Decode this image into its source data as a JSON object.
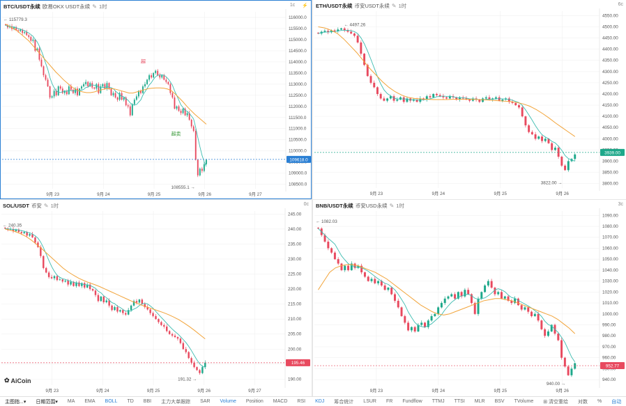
{
  "colors": {
    "up": "#1ea88a",
    "down": "#e84a5f",
    "ma_fast": "#3cbcb0",
    "ma_slow": "#f2a43a",
    "grid": "#f0f0f0",
    "accent": "#2a7fd4"
  },
  "panels": [
    {
      "id": "btc",
      "symbol": "BTC/USDT永续",
      "exchange": "欧易OKX USDT永续",
      "timeframe": "1时",
      "top_right": [
        "1c",
        "⚡"
      ],
      "yticks": [
        "116000.0",
        "115500.0",
        "115000.0",
        "114500.0",
        "114000.0",
        "113500.0",
        "113000.0",
        "112500.0",
        "112000.0",
        "111500.0",
        "111000.0",
        "110500.0",
        "110000.0",
        "109500.0",
        "109000.0",
        "108500.0"
      ],
      "xticks": [
        "9月 23",
        "9月 24",
        "9月 25",
        "9月 26",
        "9月 27"
      ],
      "price_tag": "109618.0",
      "high_label": "115779.3",
      "low_label": "108555.1",
      "annotation_1": "超",
      "annotation_2": "超卖",
      "ymin": 108300,
      "ymax": 116250,
      "closes": [
        115650,
        115550,
        115600,
        115480,
        115560,
        115420,
        115380,
        115450,
        115300,
        115340,
        115200,
        115120,
        114950,
        115000,
        114500,
        114600,
        114100,
        113800,
        113400,
        113200,
        112900,
        112400,
        112450,
        112700,
        112500,
        112900,
        112800,
        112600,
        112700,
        112550,
        112900,
        112750,
        112600,
        112800,
        112500,
        112800,
        112900,
        113000,
        113100,
        112900,
        113050,
        112850,
        112800,
        113000,
        112600,
        112900,
        113000,
        112800,
        113050,
        112800,
        112500,
        112600,
        112400,
        112300,
        112600,
        112300,
        112400,
        112050,
        112000,
        111600,
        112100,
        112300,
        112450,
        112700,
        112600,
        112900,
        113000,
        113200,
        113400,
        113300,
        113500,
        113600,
        113400,
        113300,
        113400,
        113200,
        113100,
        113000,
        112600,
        112400,
        111900,
        112000,
        111800,
        111700,
        111900,
        111600,
        111700,
        111400,
        111100,
        110900,
        109600,
        108900,
        109200,
        109100,
        109400,
        109600
      ],
      "ma_slow": [
        115700,
        115600,
        115500,
        115400,
        115250,
        115100,
        114950,
        114750,
        114550,
        114350,
        114150,
        113950,
        113750,
        113550,
        113380,
        113200,
        113050,
        112900,
        112780,
        112700,
        112650,
        112620,
        112620,
        112650,
        112700,
        112750,
        112800,
        112800,
        112790,
        112750,
        112700,
        112650,
        112600,
        112600,
        112650,
        112700,
        112750,
        112800,
        112820,
        112830,
        112830,
        112820,
        112780,
        112700,
        112550,
        112380,
        112200,
        112000,
        111820,
        111650,
        111500,
        111350,
        111200
      ]
    },
    {
      "id": "eth",
      "symbol": "ETH/USDT永续",
      "exchange": "币安USDT永续",
      "timeframe": "1时",
      "top_right": [
        "6c"
      ],
      "yticks": [
        "4550.00",
        "4500.00",
        "4450.00",
        "4400.00",
        "4350.00",
        "4300.00",
        "4250.00",
        "4200.00",
        "4150.00",
        "4100.00",
        "4050.00",
        "4000.00",
        "3950.00",
        "3900.00",
        "3850.00",
        "3800.00"
      ],
      "xticks": [
        "9月 23",
        "9月 24",
        "9月 25",
        "9月 26"
      ],
      "price_tag": "3939.00",
      "high_label": "4497.26",
      "low_label": "3822.00",
      "ymin": 3780,
      "ymax": 4570,
      "closes": [
        4470,
        4478,
        4482,
        4476,
        4484,
        4480,
        4488,
        4493,
        4485,
        4478,
        4470,
        4460,
        4430,
        4380,
        4330,
        4280,
        4250,
        4230,
        4200,
        4180,
        4170,
        4180,
        4190,
        4170,
        4175,
        4185,
        4165,
        4180,
        4170,
        4175,
        4165,
        4180,
        4175,
        4190,
        4185,
        4200,
        4195,
        4190,
        4185,
        4180,
        4190,
        4185,
        4175,
        4185,
        4180,
        4175,
        4170,
        4180,
        4175,
        4165,
        4180,
        4185,
        4175,
        4180,
        4185,
        4170,
        4175,
        4180,
        4165,
        4160,
        4150,
        4140,
        4100,
        4060,
        4030,
        4020,
        4000,
        4010,
        3990,
        4000,
        3980,
        3950,
        3960,
        3920,
        3880,
        3860,
        3900,
        3910,
        3930
      ],
      "ma_slow": [
        4500,
        4495,
        4485,
        4470,
        4445,
        4415,
        4385,
        4350,
        4315,
        4285,
        4255,
        4230,
        4210,
        4195,
        4185,
        4180,
        4178,
        4176,
        4175,
        4175,
        4175,
        4176,
        4176,
        4176,
        4176,
        4175,
        4174,
        4172,
        4170,
        4168,
        4166,
        4162,
        4155,
        4145,
        4130,
        4112,
        4092,
        4070,
        4050,
        4030,
        4010
      ]
    },
    {
      "id": "sol",
      "symbol": "SOL/USDT",
      "exchange": "币安",
      "timeframe": "1时",
      "top_right": [
        "0c"
      ],
      "yticks": [
        "245.00",
        "240.00",
        "235.00",
        "230.00",
        "225.00",
        "220.00",
        "215.00",
        "210.00",
        "205.00",
        "200.00",
        "195.00",
        "190.00"
      ],
      "xticks": [
        "9月 23",
        "9月 24",
        "9月 25",
        "9月 26",
        "9月 27"
      ],
      "price_tag": "195.46",
      "high_label": "240.35",
      "low_label": "191.32",
      "ymin": 188,
      "ymax": 246,
      "closes": [
        240.2,
        239.8,
        240.0,
        239.3,
        239.8,
        239.0,
        238.6,
        239.0,
        237.8,
        238.3,
        237.2,
        235.5,
        234.0,
        231.0,
        227.0,
        225.5,
        224.0,
        223.6,
        224.3,
        223.0,
        223.2,
        222.5,
        222.8,
        221.5,
        222.4,
        221.0,
        222.2,
        221.0,
        222.0,
        220.5,
        221.5,
        220.0,
        219.5,
        218.0,
        216.0,
        217.5,
        215.6,
        216.2,
        214.5,
        213.0,
        214.0,
        212.5,
        213.0,
        212.0,
        211.5,
        213.0,
        214.5,
        216.0,
        215.5,
        216.5,
        215.0,
        214.0,
        213.2,
        212.0,
        211.0,
        210.0,
        209.0,
        208.0,
        207.5,
        206.0,
        205.0,
        204.5,
        204.0,
        203.5,
        202.0,
        200.0,
        199.0,
        197.0,
        195.5,
        194.0,
        193.0,
        192.0,
        194.0,
        195.5
      ],
      "ma_slow": [
        240.0,
        239.6,
        239.1,
        238.4,
        237.5,
        236.3,
        234.9,
        233.4,
        231.8,
        230.2,
        228.6,
        227.0,
        225.7,
        224.6,
        223.6,
        222.8,
        222.1,
        221.5,
        220.8,
        220.0,
        219.2,
        218.4,
        217.6,
        216.8,
        216.0,
        215.3,
        214.6,
        214.0,
        213.4,
        212.8,
        212.2,
        211.5,
        210.7,
        209.8,
        208.7,
        207.5,
        206.2,
        204.8,
        203.4
      ]
    },
    {
      "id": "bnb",
      "symbol": "BNB/USDT永续",
      "exchange": "币安USD永续",
      "timeframe": "1时",
      "top_right": [
        "3c"
      ],
      "yticks": [
        "1090.00",
        "1080.00",
        "1070.00",
        "1060.00",
        "1050.00",
        "1040.00",
        "1030.00",
        "1020.00",
        "1010.00",
        "1000.00",
        "990.00",
        "980.00",
        "970.00",
        "960.00",
        "950.00",
        "940.00"
      ],
      "xticks": [
        "9月 23",
        "9月 24",
        "9月 25",
        "9月 26"
      ],
      "price_tag": "952.77",
      "high_label": "1082.03",
      "low_label": "940.00",
      "ymin": 935,
      "ymax": 1094,
      "closes": [
        1078,
        1072,
        1066,
        1060,
        1056,
        1050,
        1046,
        1040,
        1044,
        1040,
        1046,
        1042,
        1044,
        1038,
        1034,
        1030,
        1032,
        1028,
        1030,
        1026,
        1022,
        1024,
        1018,
        1012,
        1006,
        998,
        992,
        985,
        988,
        984,
        990,
        992,
        988,
        994,
        998,
        1000,
        1006,
        1010,
        1014,
        1016,
        1018,
        1014,
        1020,
        1016,
        1022,
        1018,
        1010,
        1000,
        1014,
        1020,
        1026,
        1030,
        1024,
        1018,
        1020,
        1014,
        1016,
        1012,
        1010,
        1014,
        1008,
        1004,
        1006,
        1002,
        998,
        1000,
        994,
        986,
        980,
        984,
        990,
        982,
        976,
        960,
        952,
        944,
        950,
        955
      ],
      "ma_slow": [
        1022,
        1030,
        1038,
        1042,
        1044,
        1045,
        1045,
        1044,
        1042,
        1040,
        1038,
        1035,
        1032,
        1028,
        1024,
        1020,
        1016,
        1012,
        1008,
        1005,
        1002,
        1000,
        999,
        1000,
        1002,
        1004,
        1006,
        1008,
        1010,
        1012,
        1013,
        1014,
        1014,
        1013,
        1012,
        1010,
        1008,
        1006,
        1004,
        1002,
        1000,
        998,
        995,
        991,
        987,
        982
      ]
    }
  ],
  "watermark": "AiCoin",
  "bottom_bar": [
    {
      "label": "主图指...▾",
      "strong": true
    },
    {
      "label": "日期范围▾",
      "strong": true
    },
    {
      "label": "MA"
    },
    {
      "label": "EMA"
    },
    {
      "label": "BOLL",
      "active": true
    },
    {
      "label": "TD"
    },
    {
      "label": "BBI"
    },
    {
      "label": "主力大单跟踪"
    },
    {
      "label": "SAR"
    },
    {
      "label": "Volume",
      "active": true
    },
    {
      "label": "Position"
    },
    {
      "label": "MACD"
    },
    {
      "label": "RSI"
    },
    {
      "label": "KDJ",
      "active": true
    },
    {
      "label": "筹合统计"
    },
    {
      "label": "LSUR"
    },
    {
      "label": "FR"
    },
    {
      "label": "Fundflow"
    },
    {
      "label": "TTMJ"
    },
    {
      "label": "TTSI"
    },
    {
      "label": "MLR"
    },
    {
      "label": "BSV"
    },
    {
      "label": "TVolume"
    },
    {
      "label": "⊞ 清空重绘"
    },
    {
      "label": "对数"
    },
    {
      "label": "%"
    },
    {
      "label": "自动",
      "active": true
    }
  ]
}
